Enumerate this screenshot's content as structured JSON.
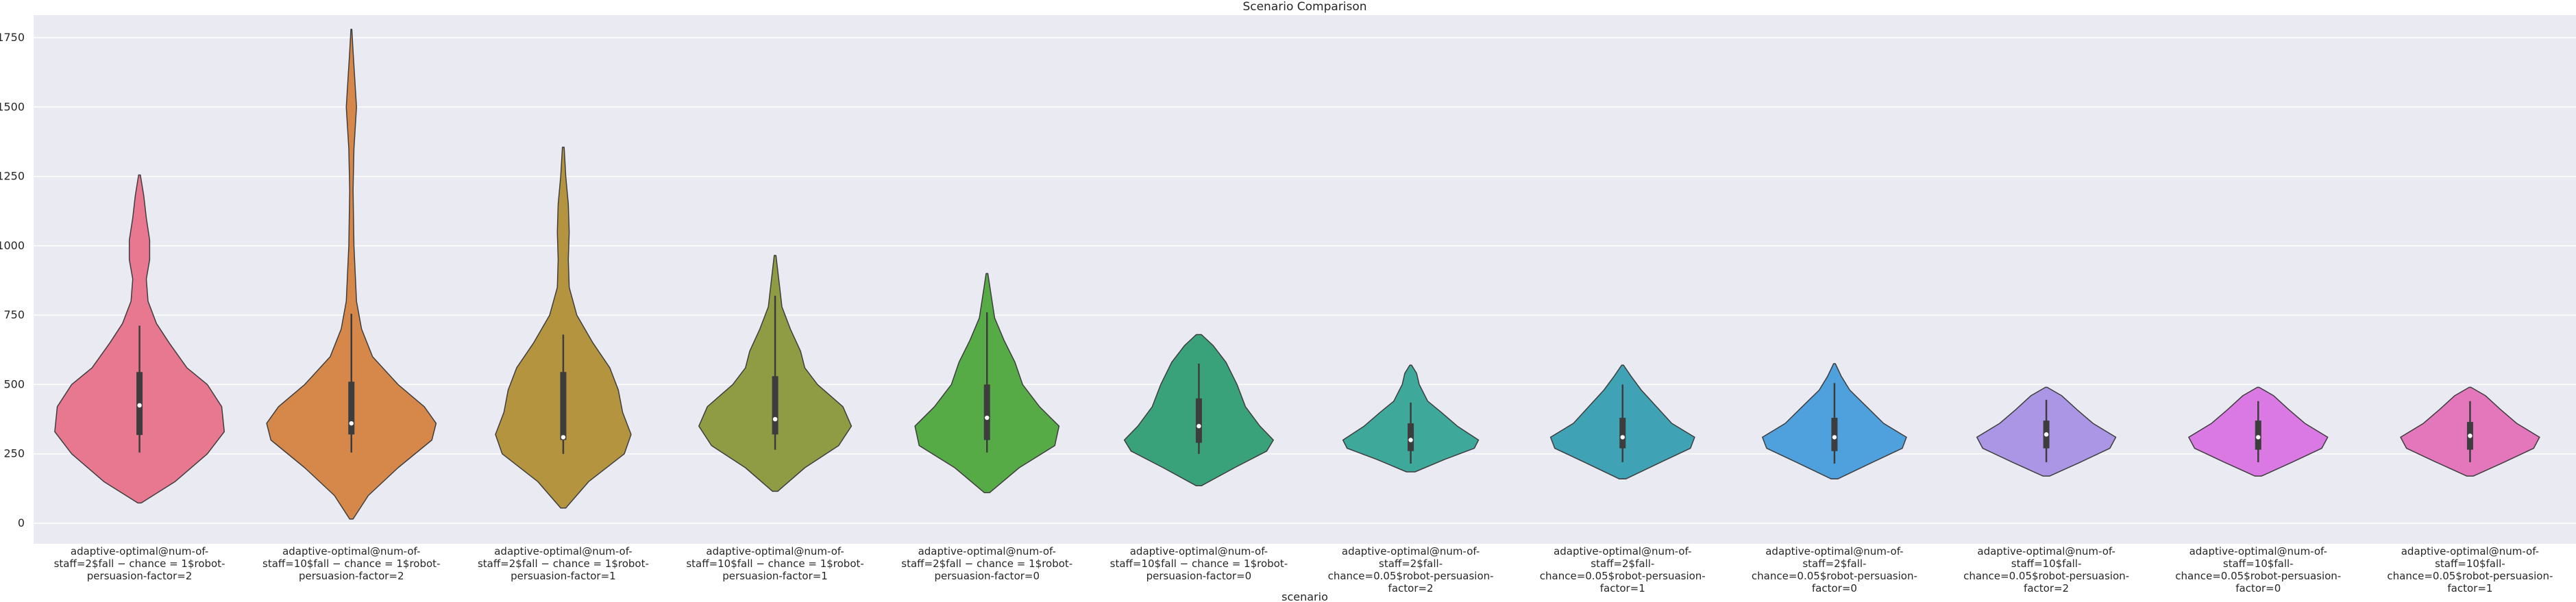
{
  "chart_data": {
    "type": "violin",
    "title": "Scenario Comparison",
    "xlabel": "scenario",
    "ylabel": "",
    "ylim": [
      -65,
      1835
    ],
    "yticks": [
      0,
      250,
      500,
      750,
      1000,
      1250,
      1500,
      1750
    ],
    "grid": true,
    "legend": "none",
    "categories": [
      "adaptive-optimal@num-of-staff=2$fall-chance=1$robot-persuasion-factor=2",
      "adaptive-optimal@num-of-staff=10$fall-chance=1$robot-persuasion-factor=2",
      "adaptive-optimal@num-of-staff=2$fall-chance=1$robot-persuasion-factor=1",
      "adaptive-optimal@num-of-staff=10$fall-chance=1$robot-persuasion-factor=1",
      "adaptive-optimal@num-of-staff=2$fall-chance=1$robot-persuasion-factor=0",
      "adaptive-optimal@num-of-staff=10$fall-chance=1$robot-persuasion-factor=0",
      "adaptive-optimal@num-of-staff=2$fall-chance=0.05$robot-persuasion-factor=2",
      "adaptive-optimal@num-of-staff=2$fall-chance=0.05$robot-persuasion-factor=1",
      "adaptive-optimal@num-of-staff=2$fall-chance=0.05$robot-persuasion-factor=0",
      "adaptive-optimal@num-of-staff=10$fall-chance=0.05$robot-persuasion-factor=2",
      "adaptive-optimal@num-of-staff=10$fall-chance=0.05$robot-persuasion-factor=0",
      "adaptive-optimal@num-of-staff=10$fall-chance=0.05$robot-persuasion-factor=1"
    ],
    "tick_labels": [
      [
        "adaptive-optimal@num-of-",
        "staff=2$fall − chance = 1$robot-",
        "persuasion-factor=2"
      ],
      [
        "adaptive-optimal@num-of-",
        "staff=10$fall − chance = 1$robot-",
        "persuasion-factor=2"
      ],
      [
        "adaptive-optimal@num-of-",
        "staff=2$fall − chance = 1$robot-",
        "persuasion-factor=1"
      ],
      [
        "adaptive-optimal@num-of-",
        "staff=10$fall − chance = 1$robot-",
        "persuasion-factor=1"
      ],
      [
        "adaptive-optimal@num-of-",
        "staff=2$fall − chance = 1$robot-",
        "persuasion-factor=0"
      ],
      [
        "adaptive-optimal@num-of-",
        "staff=10$fall − chance = 1$robot-",
        "persuasion-factor=0"
      ],
      [
        "adaptive-optimal@num-of-",
        "staff=2$fall-",
        "chance=0.05$robot-persuasion-",
        "factor=2"
      ],
      [
        "adaptive-optimal@num-of-",
        "staff=2$fall-",
        "chance=0.05$robot-persuasion-",
        "factor=1"
      ],
      [
        "adaptive-optimal@num-of-",
        "staff=2$fall-",
        "chance=0.05$robot-persuasion-",
        "factor=0"
      ],
      [
        "adaptive-optimal@num-of-",
        "staff=10$fall-",
        "chance=0.05$robot-persuasion-",
        "factor=2"
      ],
      [
        "adaptive-optimal@num-of-",
        "staff=10$fall-",
        "chance=0.05$robot-persuasion-",
        "factor=0"
      ],
      [
        "adaptive-optimal@num-of-",
        "staff=10$fall-",
        "chance=0.05$robot-persuasion-",
        "factor=1"
      ]
    ],
    "colors": [
      "#e8788f",
      "#d6884a",
      "#b59440",
      "#909c44",
      "#57ab46",
      "#3aa27a",
      "#3ea89b",
      "#3fa3b5",
      "#4ea1dc",
      "#ab96e6",
      "#da78e4",
      "#e476bb"
    ],
    "violins": [
      {
        "min": 73,
        "max": 1255,
        "q1": 318,
        "median": 425,
        "q3": 545,
        "whisker_low": 255,
        "whisker_high": 712,
        "density": [
          [
            73,
            0.02
          ],
          [
            150,
            0.42
          ],
          [
            250,
            0.8
          ],
          [
            330,
            1.0
          ],
          [
            420,
            0.97
          ],
          [
            500,
            0.8
          ],
          [
            560,
            0.56
          ],
          [
            650,
            0.35
          ],
          [
            720,
            0.2
          ],
          [
            800,
            0.1
          ],
          [
            880,
            0.08
          ],
          [
            950,
            0.12
          ],
          [
            1020,
            0.12
          ],
          [
            1100,
            0.08
          ],
          [
            1180,
            0.05
          ],
          [
            1255,
            0.01
          ]
        ]
      },
      {
        "min": 15,
        "max": 1780,
        "q1": 320,
        "median": 360,
        "q3": 510,
        "whisker_low": 255,
        "whisker_high": 755,
        "density": [
          [
            15,
            0.02
          ],
          [
            100,
            0.2
          ],
          [
            200,
            0.55
          ],
          [
            300,
            0.95
          ],
          [
            360,
            1.0
          ],
          [
            420,
            0.86
          ],
          [
            500,
            0.55
          ],
          [
            600,
            0.25
          ],
          [
            700,
            0.12
          ],
          [
            800,
            0.06
          ],
          [
            1000,
            0.03
          ],
          [
            1200,
            0.02
          ],
          [
            1350,
            0.03
          ],
          [
            1500,
            0.06
          ],
          [
            1600,
            0.04
          ],
          [
            1700,
            0.02
          ],
          [
            1780,
            0.005
          ]
        ]
      },
      {
        "min": 55,
        "max": 1355,
        "q1": 300,
        "median": 310,
        "q3": 545,
        "whisker_low": 250,
        "whisker_high": 680,
        "density": [
          [
            55,
            0.03
          ],
          [
            150,
            0.3
          ],
          [
            250,
            0.72
          ],
          [
            320,
            0.8
          ],
          [
            400,
            0.7
          ],
          [
            480,
            0.65
          ],
          [
            560,
            0.55
          ],
          [
            650,
            0.35
          ],
          [
            750,
            0.16
          ],
          [
            850,
            0.07
          ],
          [
            950,
            0.06
          ],
          [
            1050,
            0.07
          ],
          [
            1150,
            0.06
          ],
          [
            1250,
            0.03
          ],
          [
            1355,
            0.01
          ]
        ]
      },
      {
        "min": 115,
        "max": 965,
        "q1": 320,
        "median": 375,
        "q3": 530,
        "whisker_low": 265,
        "whisker_high": 820,
        "density": [
          [
            115,
            0.03
          ],
          [
            200,
            0.35
          ],
          [
            280,
            0.75
          ],
          [
            350,
            0.9
          ],
          [
            420,
            0.8
          ],
          [
            500,
            0.5
          ],
          [
            560,
            0.35
          ],
          [
            620,
            0.3
          ],
          [
            700,
            0.18
          ],
          [
            780,
            0.08
          ],
          [
            860,
            0.05
          ],
          [
            965,
            0.01
          ]
        ]
      },
      {
        "min": 110,
        "max": 900,
        "q1": 300,
        "median": 380,
        "q3": 500,
        "whisker_low": 255,
        "whisker_high": 760,
        "density": [
          [
            110,
            0.03
          ],
          [
            200,
            0.38
          ],
          [
            280,
            0.8
          ],
          [
            350,
            0.85
          ],
          [
            420,
            0.62
          ],
          [
            500,
            0.42
          ],
          [
            580,
            0.33
          ],
          [
            660,
            0.2
          ],
          [
            740,
            0.09
          ],
          [
            820,
            0.05
          ],
          [
            900,
            0.01
          ]
        ]
      },
      {
        "min": 135,
        "max": 680,
        "q1": 290,
        "median": 350,
        "q3": 450,
        "whisker_low": 250,
        "whisker_high": 575,
        "density": [
          [
            135,
            0.03
          ],
          [
            200,
            0.42
          ],
          [
            260,
            0.8
          ],
          [
            300,
            0.88
          ],
          [
            350,
            0.72
          ],
          [
            420,
            0.55
          ],
          [
            500,
            0.45
          ],
          [
            580,
            0.32
          ],
          [
            640,
            0.17
          ],
          [
            680,
            0.03
          ]
        ]
      },
      {
        "min": 185,
        "max": 570,
        "q1": 260,
        "median": 300,
        "q3": 360,
        "whisker_low": 215,
        "whisker_high": 435,
        "density": [
          [
            185,
            0.05
          ],
          [
            230,
            0.4
          ],
          [
            270,
            0.75
          ],
          [
            300,
            0.8
          ],
          [
            350,
            0.55
          ],
          [
            400,
            0.36
          ],
          [
            440,
            0.2
          ],
          [
            500,
            0.1
          ],
          [
            540,
            0.07
          ],
          [
            570,
            0.01
          ]
        ]
      },
      {
        "min": 160,
        "max": 570,
        "q1": 270,
        "median": 310,
        "q3": 380,
        "whisker_low": 220,
        "whisker_high": 500,
        "density": [
          [
            160,
            0.04
          ],
          [
            220,
            0.45
          ],
          [
            270,
            0.8
          ],
          [
            310,
            0.85
          ],
          [
            360,
            0.58
          ],
          [
            420,
            0.4
          ],
          [
            480,
            0.22
          ],
          [
            530,
            0.1
          ],
          [
            570,
            0.01
          ]
        ]
      },
      {
        "min": 160,
        "max": 575,
        "q1": 260,
        "median": 310,
        "q3": 380,
        "whisker_low": 215,
        "whisker_high": 505,
        "density": [
          [
            160,
            0.04
          ],
          [
            220,
            0.45
          ],
          [
            270,
            0.8
          ],
          [
            310,
            0.85
          ],
          [
            360,
            0.58
          ],
          [
            420,
            0.38
          ],
          [
            480,
            0.18
          ],
          [
            530,
            0.08
          ],
          [
            575,
            0.01
          ]
        ]
      },
      {
        "min": 170,
        "max": 490,
        "q1": 270,
        "median": 320,
        "q3": 370,
        "whisker_low": 220,
        "whisker_high": 445,
        "density": [
          [
            170,
            0.04
          ],
          [
            220,
            0.4
          ],
          [
            270,
            0.75
          ],
          [
            310,
            0.82
          ],
          [
            360,
            0.55
          ],
          [
            410,
            0.36
          ],
          [
            460,
            0.18
          ],
          [
            490,
            0.01
          ]
        ]
      },
      {
        "min": 170,
        "max": 490,
        "q1": 265,
        "median": 310,
        "q3": 370,
        "whisker_low": 220,
        "whisker_high": 440,
        "density": [
          [
            170,
            0.04
          ],
          [
            220,
            0.4
          ],
          [
            270,
            0.75
          ],
          [
            310,
            0.82
          ],
          [
            360,
            0.55
          ],
          [
            410,
            0.36
          ],
          [
            460,
            0.18
          ],
          [
            490,
            0.01
          ]
        ]
      },
      {
        "min": 170,
        "max": 490,
        "q1": 265,
        "median": 315,
        "q3": 365,
        "whisker_low": 220,
        "whisker_high": 440,
        "density": [
          [
            170,
            0.04
          ],
          [
            220,
            0.4
          ],
          [
            270,
            0.75
          ],
          [
            310,
            0.82
          ],
          [
            360,
            0.55
          ],
          [
            410,
            0.36
          ],
          [
            460,
            0.18
          ],
          [
            490,
            0.01
          ]
        ]
      }
    ]
  }
}
